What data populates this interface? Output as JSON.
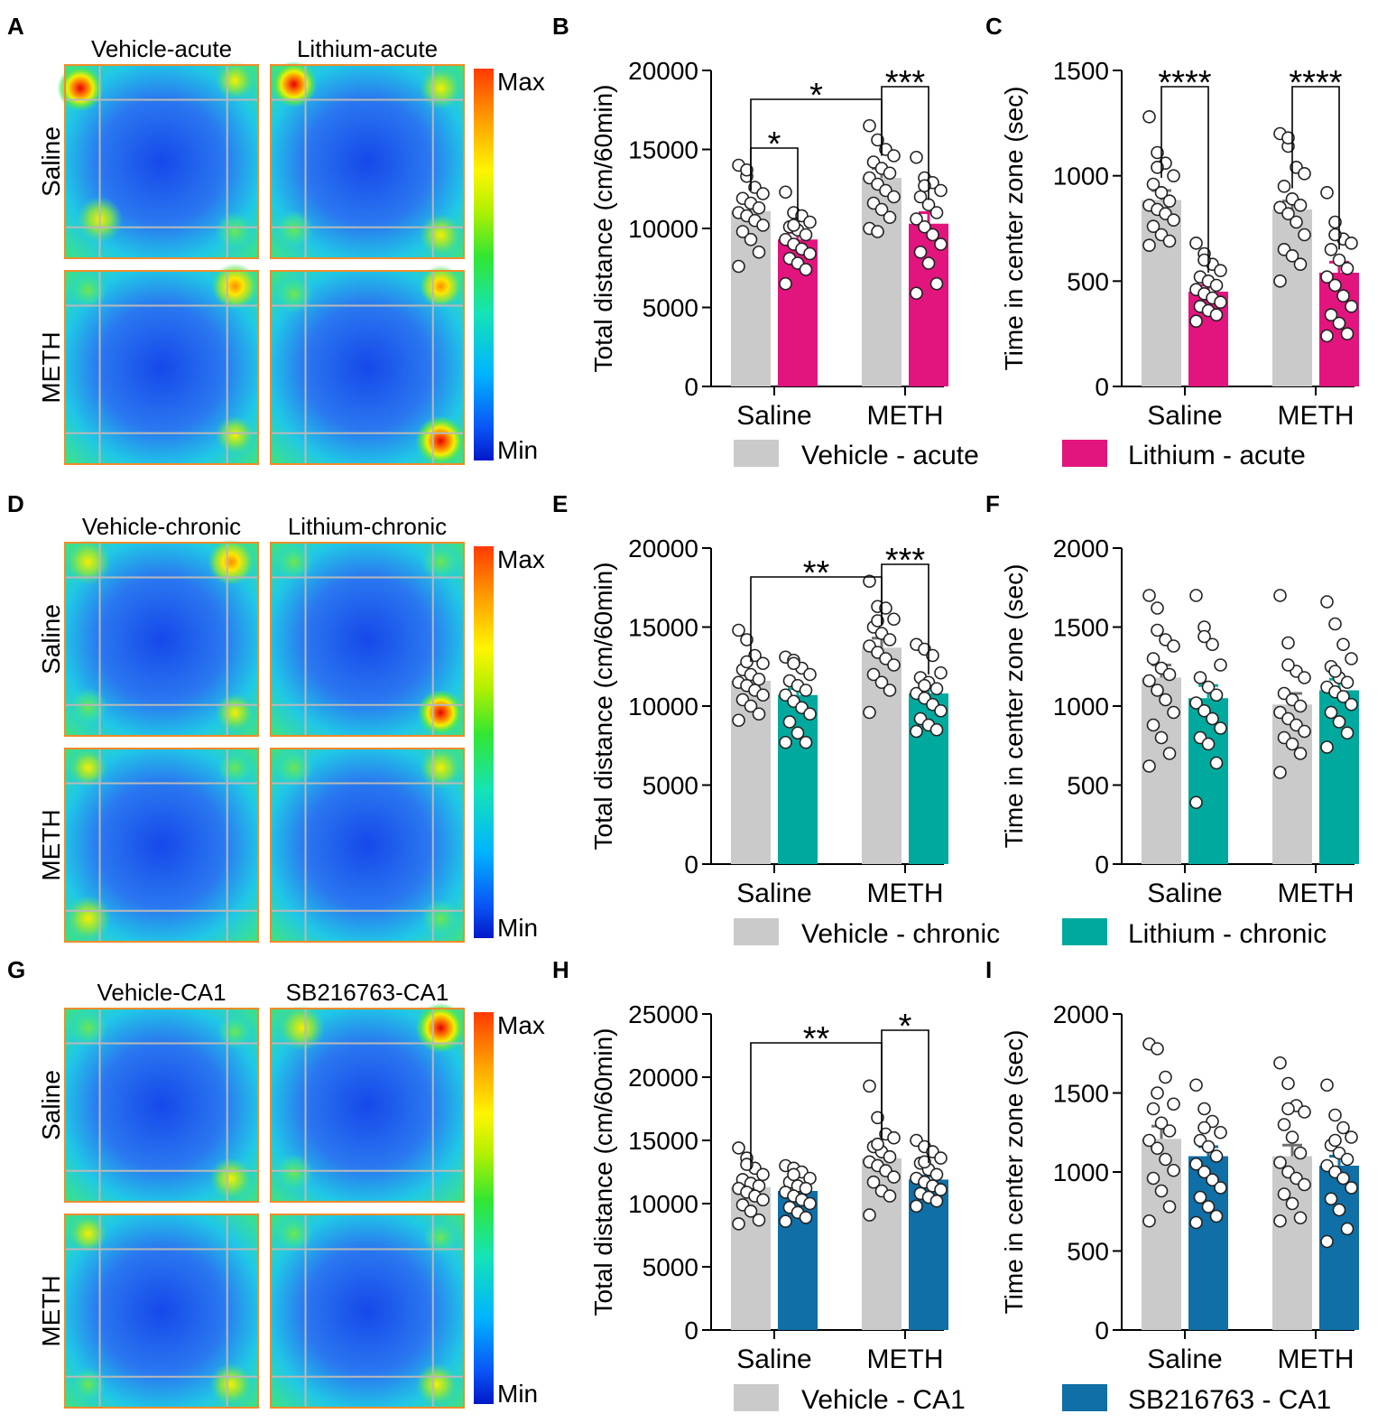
{
  "colors": {
    "vehicle": "#cacaca",
    "acute": "#e2147e",
    "chronic": "#00a99d",
    "ca1": "#0f6fa6",
    "frame": "#f08c2a"
  },
  "panels": {
    "A": {
      "letter": "A",
      "col_labels": [
        "Vehicle-acute",
        "Lithium-acute"
      ],
      "row_labels": [
        "Saline",
        "METH"
      ],
      "scale": {
        "max_label": "Max",
        "min_label": "Min"
      }
    },
    "D": {
      "letter": "D",
      "col_labels": [
        "Vehicle-chronic",
        "Lithium-chronic"
      ],
      "row_labels": [
        "Saline",
        "METH"
      ],
      "scale": {
        "max_label": "Max",
        "min_label": "Min"
      }
    },
    "G": {
      "letter": "G",
      "col_labels": [
        "Vehicle-CA1",
        "SB216763-CA1"
      ],
      "row_labels": [
        "Saline",
        "METH"
      ],
      "scale": {
        "max_label": "Max",
        "min_label": "Min"
      }
    }
  },
  "legends": [
    {
      "vehicle_label": "Vehicle - acute",
      "treat_label": "Lithium - acute",
      "treat_color": "acute"
    },
    {
      "vehicle_label": "Vehicle - chronic",
      "treat_label": "Lithium - chronic",
      "treat_color": "chronic"
    },
    {
      "vehicle_label": "Vehicle - CA1",
      "treat_label": "SB216763 - CA1",
      "treat_color": "ca1"
    }
  ],
  "chart_data": [
    {
      "panel": "B",
      "type": "bar",
      "ylabel": "Total distance (cm/60min)",
      "ylim": [
        0,
        20000
      ],
      "yticks": [
        0,
        5000,
        10000,
        15000,
        20000
      ],
      "categories": [
        "Saline",
        "METH"
      ],
      "treat_color": "acute",
      "series": [
        {
          "name": "Vehicle - acute",
          "values": [
            11100,
            13200
          ],
          "sem": [
            500,
            600
          ],
          "points": [
            [
              14000,
              13300,
              12600,
              12200,
              11900,
              11600,
              11300,
              11000,
              10800,
              10500,
              10200,
              9800,
              9300,
              8500,
              7600,
              13700
            ],
            [
              16500,
              15600,
              15000,
              14600,
              14200,
              13800,
              13500,
              13200,
              12800,
              12400,
              12000,
              11600,
              11200,
              10700,
              10000,
              9800
            ]
          ]
        },
        {
          "name": "Lithium - acute",
          "values": [
            9300,
            10300
          ],
          "sem": [
            450,
            700
          ],
          "points": [
            [
              12300,
              11000,
              10800,
              10400,
              10100,
              9900,
              9600,
              9300,
              9000,
              8700,
              8400,
              8100,
              7800,
              7400,
              6500,
              10200
            ],
            [
              14500,
              13200,
              12900,
              12400,
              12000,
              11500,
              11000,
              10600,
              10100,
              9600,
              9000,
              8500,
              7800,
              6500,
              5900,
              12700
            ]
          ]
        }
      ],
      "brackets": [
        {
          "label": "*",
          "from": [
            0,
            0
          ],
          "to": [
            0,
            1
          ]
        },
        {
          "label": "*",
          "from": [
            0,
            0
          ],
          "to": [
            1,
            0
          ]
        },
        {
          "label": "***",
          "from": [
            1,
            0
          ],
          "to": [
            1,
            1
          ]
        }
      ]
    },
    {
      "panel": "C",
      "type": "bar",
      "ylabel": "Time in center zone (sec)",
      "ylim": [
        0,
        1500
      ],
      "yticks": [
        0,
        500,
        1000,
        1500
      ],
      "categories": [
        "Saline",
        "METH"
      ],
      "treat_color": "acute",
      "series": [
        {
          "name": "Vehicle - acute",
          "values": [
            885,
            840
          ],
          "sem": [
            45,
            40
          ],
          "points": [
            [
              1280,
              1110,
              1060,
              1000,
              960,
              920,
              880,
              860,
              840,
              820,
              790,
              760,
              720,
              690,
              670,
              1040
            ],
            [
              1200,
              1140,
              1040,
              1010,
              950,
              890,
              860,
              850,
              820,
              780,
              720,
              650,
              620,
              580,
              500,
              1180
            ]
          ]
        },
        {
          "name": "Lithium - acute",
          "values": [
            450,
            540
          ],
          "sem": [
            30,
            50
          ],
          "points": [
            [
              680,
              630,
              580,
              550,
              520,
              500,
              480,
              460,
              440,
              420,
              400,
              380,
              360,
              340,
              310,
              600
            ],
            [
              920,
              780,
              700,
              680,
              650,
              600,
              560,
              520,
              480,
              430,
              380,
              340,
              300,
              250,
              240,
              720
            ]
          ]
        }
      ],
      "brackets": [
        {
          "label": "****",
          "from": [
            0,
            0
          ],
          "to": [
            0,
            1
          ]
        },
        {
          "label": "****",
          "from": [
            1,
            0
          ],
          "to": [
            1,
            1
          ]
        }
      ]
    },
    {
      "panel": "E",
      "type": "bar",
      "ylabel": "Total distance (cm/60min)",
      "ylim": [
        0,
        20000
      ],
      "yticks": [
        0,
        5000,
        10000,
        15000,
        20000
      ],
      "categories": [
        "Saline",
        "METH"
      ],
      "treat_color": "chronic",
      "series": [
        {
          "name": "Vehicle - chronic",
          "values": [
            11600,
            13700
          ],
          "sem": [
            400,
            600
          ],
          "points": [
            [
              14800,
              14200,
              13200,
              12700,
              12300,
              12000,
              11700,
              11500,
              11300,
              11000,
              10700,
              10400,
              10000,
              9500,
              9100,
              12800
            ],
            [
              17900,
              16300,
              16200,
              15500,
              15000,
              14600,
              14200,
              13800,
              13400,
              13000,
              12600,
              12000,
              11500,
              11000,
              9600,
              15400
            ]
          ]
        },
        {
          "name": "Lithium - chronic",
          "values": [
            10700,
            10800
          ],
          "sem": [
            400,
            400
          ],
          "points": [
            [
              13100,
              12900,
              12400,
              12000,
              11600,
              11300,
              11000,
              10700,
              10300,
              9900,
              9500,
              9000,
              8300,
              7700,
              7700,
              12700
            ],
            [
              13900,
              13600,
              13200,
              12100,
              11800,
              11500,
              11100,
              10800,
              10500,
              10100,
              9700,
              9200,
              8800,
              8500,
              8400,
              11300
            ]
          ]
        }
      ],
      "brackets": [
        {
          "label": "**",
          "from": [
            0,
            0
          ],
          "to": [
            1,
            0
          ]
        },
        {
          "label": "***",
          "from": [
            1,
            0
          ],
          "to": [
            1,
            1
          ]
        }
      ]
    },
    {
      "panel": "F",
      "type": "bar",
      "ylabel": "Time in center zone (sec)",
      "ylim": [
        0,
        2000
      ],
      "yticks": [
        0,
        500,
        1000,
        1500,
        2000
      ],
      "categories": [
        "Saline",
        "METH"
      ],
      "treat_color": "chronic",
      "series": [
        {
          "name": "Vehicle - chronic",
          "values": [
            1180,
            1010
          ],
          "sem": [
            80,
            70
          ],
          "points": [
            [
              1700,
              1620,
              1420,
              1380,
              1300,
              1240,
              1200,
              1160,
              1100,
              1040,
              960,
              880,
              800,
              700,
              620,
              1480
            ],
            [
              1700,
              1400,
              1220,
              1180,
              1080,
              1040,
              1000,
              960,
              920,
              880,
              840,
              800,
              760,
              700,
              580,
              1260
            ]
          ]
        },
        {
          "name": "Lithium - chronic",
          "values": [
            1050,
            1100
          ],
          "sem": [
            80,
            70
          ],
          "points": [
            [
              1700,
              1500,
              1390,
              1260,
              1180,
              1120,
              1070,
              1020,
              970,
              920,
              860,
              800,
              760,
              640,
              390,
              1440
            ],
            [
              1660,
              1520,
              1390,
              1300,
              1250,
              1180,
              1150,
              1120,
              1090,
              1060,
              1010,
              960,
              900,
              830,
              740,
              1220
            ]
          ]
        }
      ],
      "brackets": []
    },
    {
      "panel": "H",
      "type": "bar",
      "ylabel": "Total distance (cm/60min)",
      "ylim": [
        0,
        25000
      ],
      "yticks": [
        0,
        5000,
        10000,
        15000,
        20000,
        25000
      ],
      "categories": [
        "Saline",
        "METH"
      ],
      "treat_color": "ca1",
      "series": [
        {
          "name": "Vehicle-CA1",
          "values": [
            11300,
            13600
          ],
          "sem": [
            400,
            500
          ],
          "points": [
            [
              14400,
              13600,
              12800,
              12300,
              11900,
              11600,
              11400,
              11200,
              10900,
              10600,
              10300,
              9900,
              9400,
              8700,
              8400,
              13100
            ],
            [
              19300,
              16800,
              15500,
              15200,
              14500,
              14100,
              13700,
              13300,
              13000,
              12600,
              12100,
              11700,
              11000,
              10600,
              9100,
              14700
            ]
          ]
        },
        {
          "name": "SB216763-CA1",
          "values": [
            11000,
            11900
          ],
          "sem": [
            300,
            300
          ],
          "points": [
            [
              13000,
              12800,
              12500,
              12000,
              11700,
              11400,
              11200,
              10900,
              10600,
              10300,
              10000,
              9700,
              9300,
              8900,
              8600,
              12300
            ],
            [
              15000,
              14500,
              14100,
              13600,
              13200,
              12700,
              12300,
              12000,
              11700,
              11400,
              11100,
              10800,
              10500,
              10200,
              9800,
              13300
            ]
          ]
        }
      ],
      "brackets": [
        {
          "label": "**",
          "from": [
            0,
            0
          ],
          "to": [
            1,
            0
          ]
        },
        {
          "label": "*",
          "from": [
            1,
            0
          ],
          "to": [
            1,
            1
          ]
        }
      ]
    },
    {
      "panel": "I",
      "type": "bar",
      "ylabel": "Time in center zone (sec)",
      "ylim": [
        0,
        2000
      ],
      "yticks": [
        0,
        500,
        1000,
        1500,
        2000
      ],
      "categories": [
        "Saline",
        "METH"
      ],
      "treat_color": "ca1",
      "series": [
        {
          "name": "Vehicle-CA1",
          "values": [
            1210,
            1100
          ],
          "sem": [
            80,
            70
          ],
          "points": [
            [
              1810,
              1780,
              1600,
              1430,
              1400,
              1310,
              1260,
              1200,
              1150,
              1080,
              1010,
              960,
              880,
              780,
              690,
              1500
            ],
            [
              1690,
              1560,
              1420,
              1380,
              1300,
              1220,
              1120,
              1060,
              1000,
              960,
              920,
              860,
              800,
              710,
              690,
              1400
            ]
          ]
        },
        {
          "name": "SB216763-CA1",
          "values": [
            1100,
            1040
          ],
          "sem": [
            60,
            60
          ],
          "points": [
            [
              1550,
              1400,
              1320,
              1250,
              1200,
              1160,
              1100,
              1050,
              1000,
              950,
              900,
              840,
              780,
              720,
              680,
              1280
            ],
            [
              1550,
              1360,
              1280,
              1220,
              1170,
              1120,
              1080,
              1040,
              1000,
              960,
              900,
              830,
              760,
              640,
              560,
              1200
            ]
          ]
        }
      ],
      "brackets": []
    }
  ]
}
